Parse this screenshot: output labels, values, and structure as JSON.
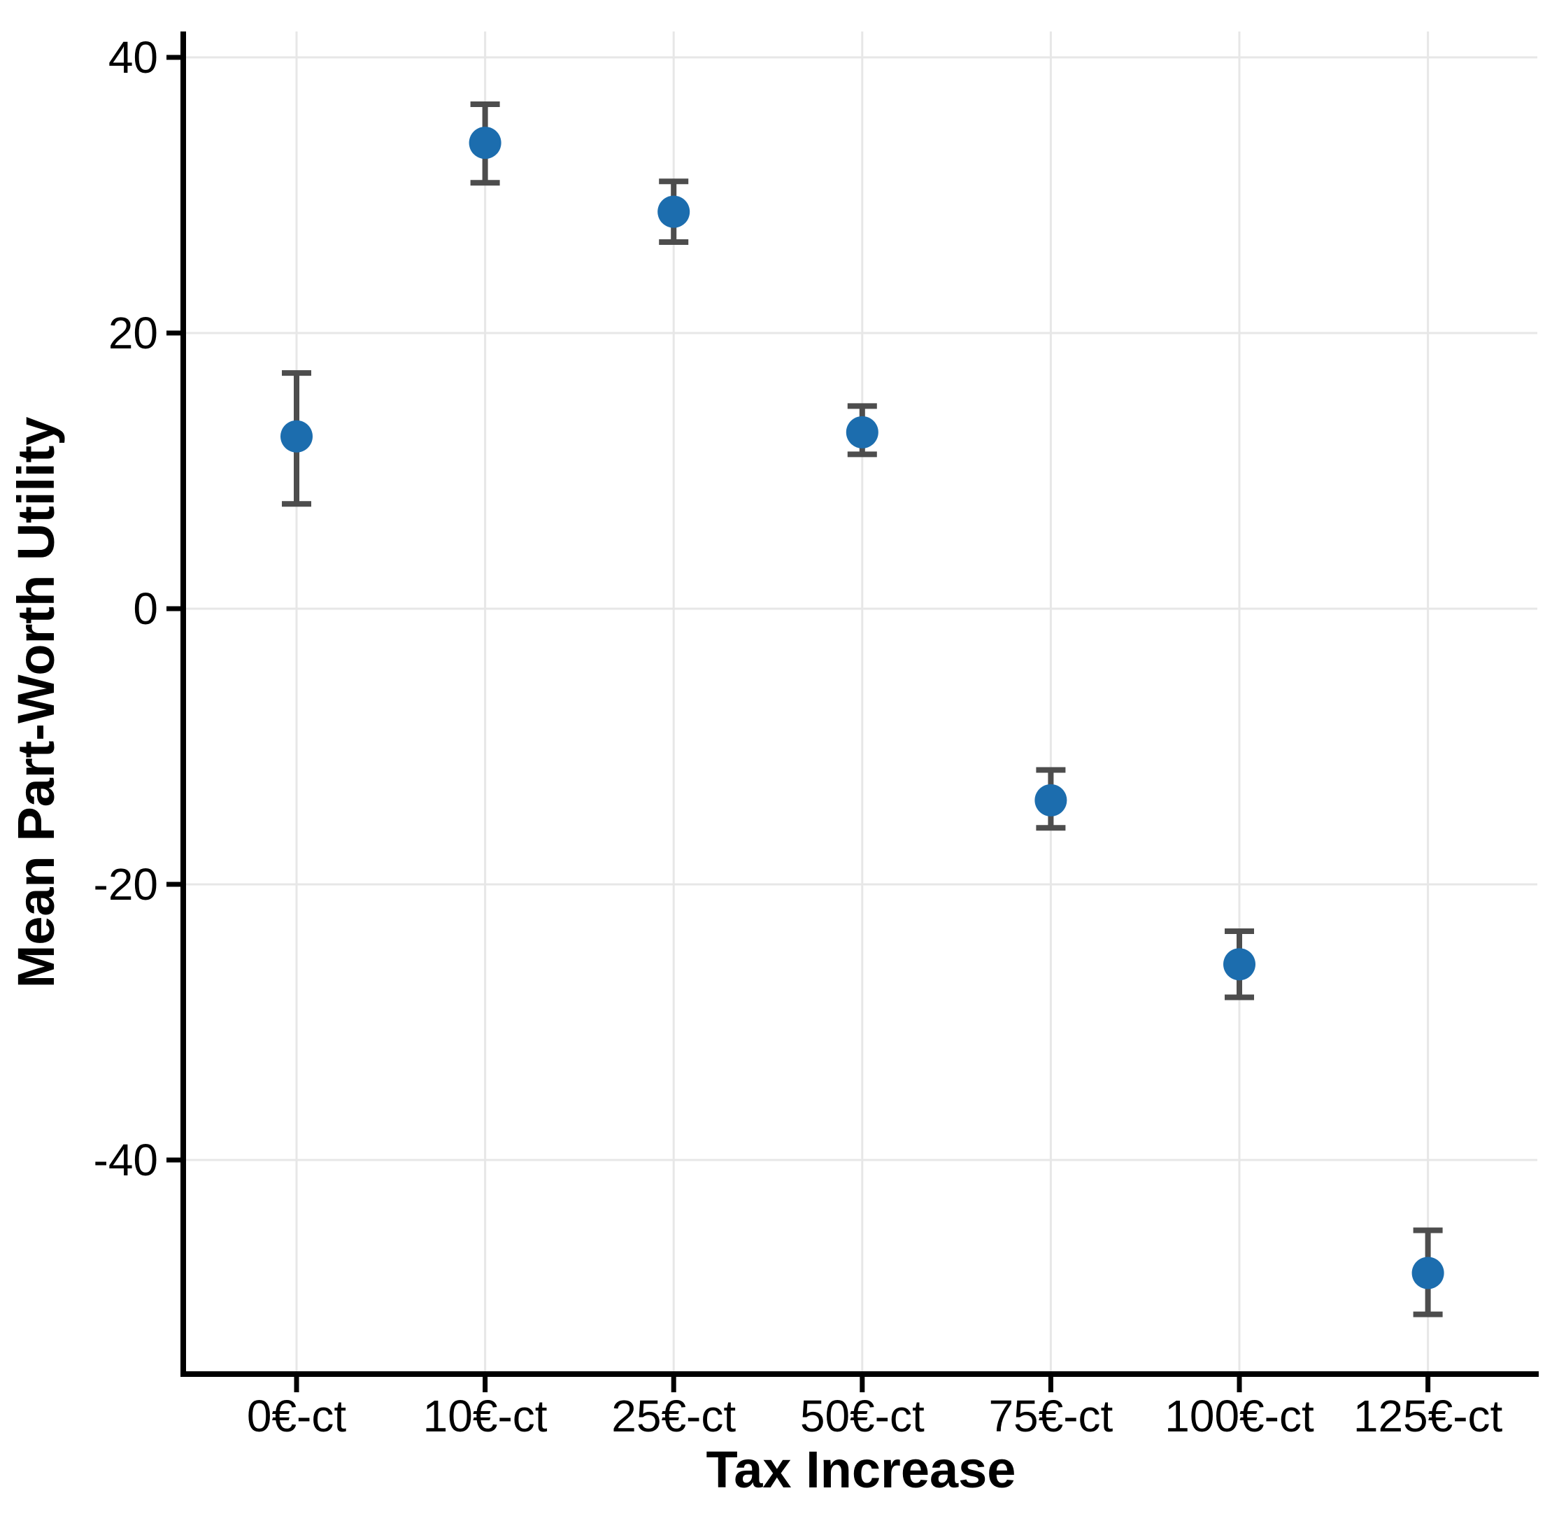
{
  "chart_data": {
    "type": "scatter",
    "subtype": "point-estimates-with-error-bars",
    "title": "",
    "xlabel": "Tax Increase",
    "ylabel": "Mean Part-Worth Utility",
    "categories": [
      "0€-ct",
      "10€-ct",
      "25€-ct",
      "50€-ct",
      "75€-ct",
      "100€-ct",
      "125€-ct"
    ],
    "series": [
      {
        "name": "Mean Part-Worth Utility",
        "values": [
          12.5,
          33.8,
          28.8,
          12.8,
          -13.9,
          -25.8,
          -48.2
        ],
        "ci_lower": [
          7.6,
          30.9,
          26.6,
          11.2,
          -15.9,
          -28.2,
          -51.2
        ],
        "ci_upper": [
          17.1,
          36.6,
          31.0,
          14.7,
          -11.7,
          -23.4,
          -45.1
        ]
      }
    ],
    "y_ticks": [
      40,
      20,
      0,
      -20,
      -40
    ],
    "ylim": [
      -55.5,
      41.9
    ],
    "grid": "major gridlines only: horizontal at y ticks, vertical at each category",
    "legend_position": "none",
    "colors": {
      "point": "#1C6DAE",
      "error_bar": "#4D4D4D",
      "gridline": "#E7E7E7",
      "axis_line": "#000000",
      "background": "#FFFFFF"
    }
  }
}
